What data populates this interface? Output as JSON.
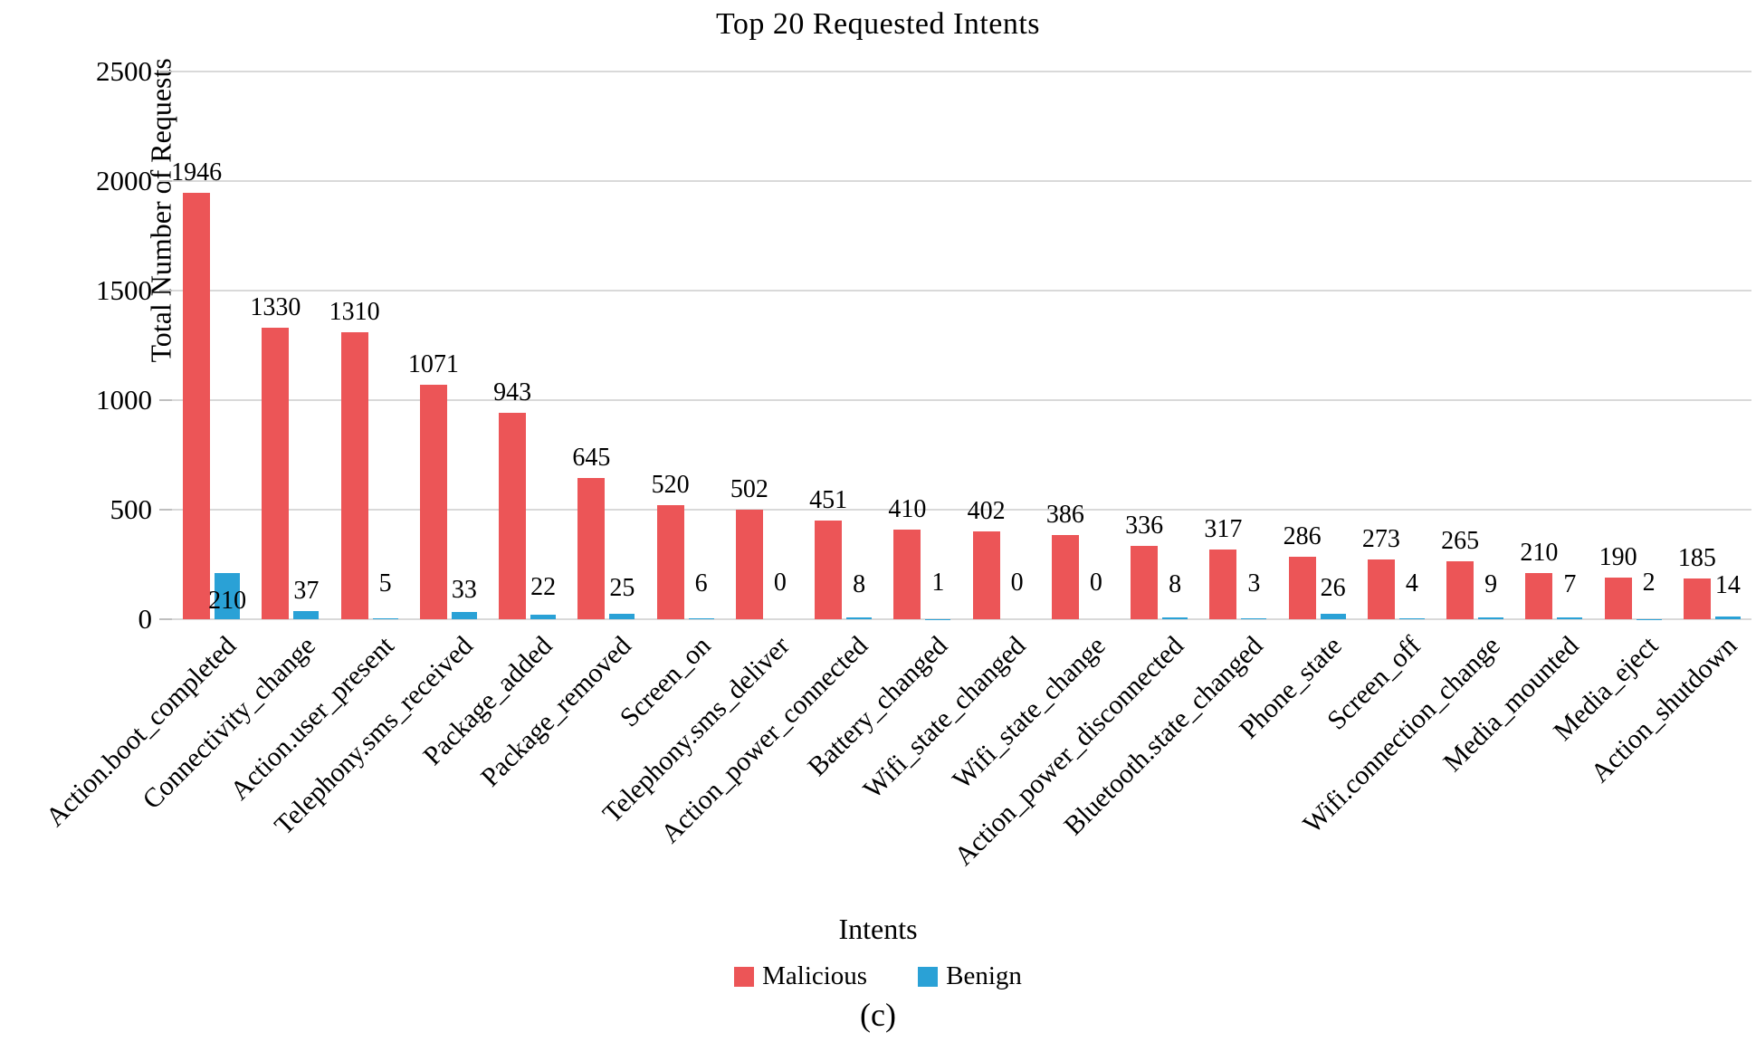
{
  "title": "Top 20 Requested Intents",
  "caption": "(c)",
  "axes": {
    "x_label": "Intents",
    "y_label": "Total Number of Requests"
  },
  "legend": [
    {
      "label": "Malicious",
      "color": "#ec5557"
    },
    {
      "label": "Benign",
      "color": "#2aa1d6"
    }
  ],
  "colors": {
    "malicious": "#ec5557",
    "benign": "#2aa1d6",
    "gridline": "#d9d9d9"
  },
  "chart_data": {
    "type": "bar",
    "title": "Top 20 Requested Intents",
    "xlabel": "Intents",
    "ylabel": "Total Number of Requests",
    "ylim": [
      0,
      2500
    ],
    "yticks": [
      0,
      500,
      1000,
      1500,
      2000,
      2500
    ],
    "grid": true,
    "legend_position": "bottom",
    "data_labels": true,
    "categories": [
      "Action.boot_completed",
      "Connectivity_change",
      "Action.user_present",
      "Telephony.sms_received",
      "Package_added",
      "Package_removed",
      "Screen_on",
      "Telephony.sms_deliver",
      "Action_power_connected",
      "Battery_changed",
      "Wifi_state_changed",
      "Wifi_state_change",
      "Action_power_disconnected",
      "Bluetooth.state_changed",
      "Phone_state",
      "Screen_off",
      "Wifi.connection_change",
      "Media_mounted",
      "Media_eject",
      "Action_shutdown"
    ],
    "series": [
      {
        "name": "Malicious",
        "color": "#ec5557",
        "values": [
          1946,
          1330,
          1310,
          1071,
          943,
          645,
          520,
          502,
          451,
          410,
          402,
          386,
          336,
          317,
          286,
          273,
          265,
          210,
          190,
          185
        ]
      },
      {
        "name": "Benign",
        "color": "#2aa1d6",
        "values": [
          210,
          37,
          5,
          33,
          22,
          25,
          6,
          0,
          8,
          1,
          0,
          0,
          8,
          3,
          26,
          4,
          9,
          7,
          2,
          14
        ]
      }
    ]
  }
}
